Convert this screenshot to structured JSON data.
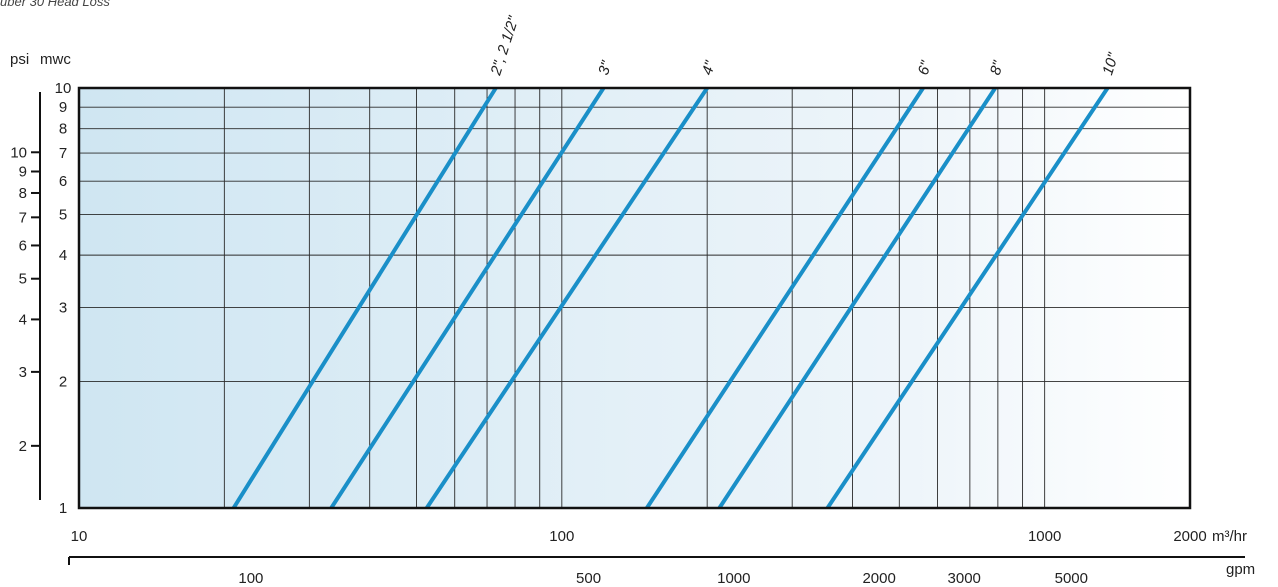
{
  "caption": "uber 30 Head Loss",
  "chart_data": {
    "type": "line",
    "x_axis_primary": {
      "label": "m³/hr",
      "scale": "log",
      "range": [
        10,
        2000
      ],
      "ticks": [
        10,
        100,
        1000,
        2000
      ],
      "tick_labels": [
        "10",
        "100",
        "1000",
        "2000"
      ]
    },
    "x_axis_secondary": {
      "label": "gpm",
      "tick_values_m3hr": [
        22.7,
        113.6,
        227.1,
        454.2,
        681.4,
        1135.6
      ],
      "tick_labels": [
        "100",
        "500",
        "1000",
        "2000",
        "3000",
        "5000"
      ]
    },
    "y_axis_primary": {
      "label": "mwc",
      "scale": "log",
      "range": [
        1,
        10
      ],
      "ticks": [
        1,
        2,
        3,
        4,
        5,
        6,
        7,
        8,
        9,
        10
      ],
      "tick_labels": [
        "1",
        "2",
        "3",
        "4",
        "5",
        "6",
        "7",
        "8",
        "9",
        "10"
      ]
    },
    "y_axis_secondary": {
      "label": "psi",
      "tick_values_mwc": [
        1.406,
        2.109,
        2.812,
        3.515,
        4.218,
        4.921,
        5.624,
        6.327,
        7.03
      ],
      "tick_labels": [
        "2",
        "3",
        "4",
        "5",
        "6",
        "7",
        "8",
        "9",
        "10"
      ]
    },
    "grid": true,
    "series": [
      {
        "name": "2\", 2 1/2\"",
        "x": [
          20.9,
          73
        ],
        "y": [
          1,
          10
        ]
      },
      {
        "name": "3\"",
        "x": [
          33.3,
          122
        ],
        "y": [
          1,
          10
        ]
      },
      {
        "name": "4\"",
        "x": [
          52.5,
          200
        ],
        "y": [
          1,
          10
        ]
      },
      {
        "name": "6\"",
        "x": [
          150,
          560
        ],
        "y": [
          1,
          10
        ]
      },
      {
        "name": "8\"",
        "x": [
          212,
          790
        ],
        "y": [
          1,
          10
        ]
      },
      {
        "name": "10\"",
        "x": [
          355,
          1350
        ],
        "y": [
          1,
          10
        ]
      }
    ],
    "colors": {
      "series": "#1a8fc8",
      "grid": "#2a2a2a",
      "frame": "#111111",
      "fill_start": "#cfe6f2",
      "fill_end": "#ffffff"
    }
  }
}
